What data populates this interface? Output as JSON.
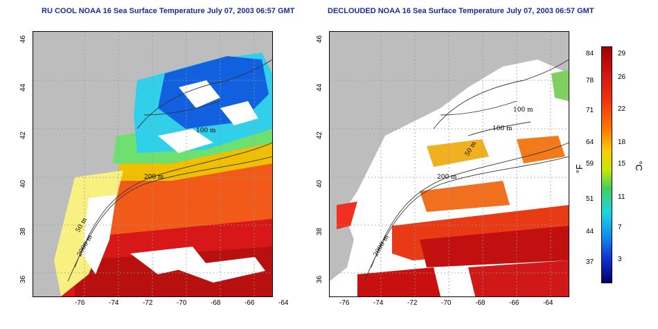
{
  "left_panel": {
    "title": "RU COOL NOAA 16 Sea Surface Temperature July 07, 2003 06:57 GMT",
    "contours": [
      "50 m",
      "100 m",
      "200 m",
      "2000 m"
    ]
  },
  "right_panel": {
    "title": "DECLOUDED NOAA 16 Sea Surface Temperature July 07, 2003 06:57 GMT",
    "contours": [
      "50 m",
      "100 m",
      "100 m",
      "200 m",
      "2000 m"
    ]
  },
  "x_ticks": [
    "-76",
    "-74",
    "-72",
    "-70",
    "-68",
    "-66",
    "-64"
  ],
  "y_ticks": [
    "46",
    "44",
    "42",
    "40",
    "38",
    "36"
  ],
  "colorbar": {
    "left_unit": "°F",
    "right_unit": "°C",
    "fahrenheit": [
      "84",
      "78",
      "71",
      "64",
      "59",
      "51",
      "44",
      "37"
    ],
    "celsius": [
      "29",
      "26",
      "22",
      "18",
      "15",
      "11",
      "7",
      "3"
    ]
  },
  "colors": {
    "title": "#1a2aa0",
    "land": "#bdbdbd",
    "cloud": "#ffffff"
  }
}
